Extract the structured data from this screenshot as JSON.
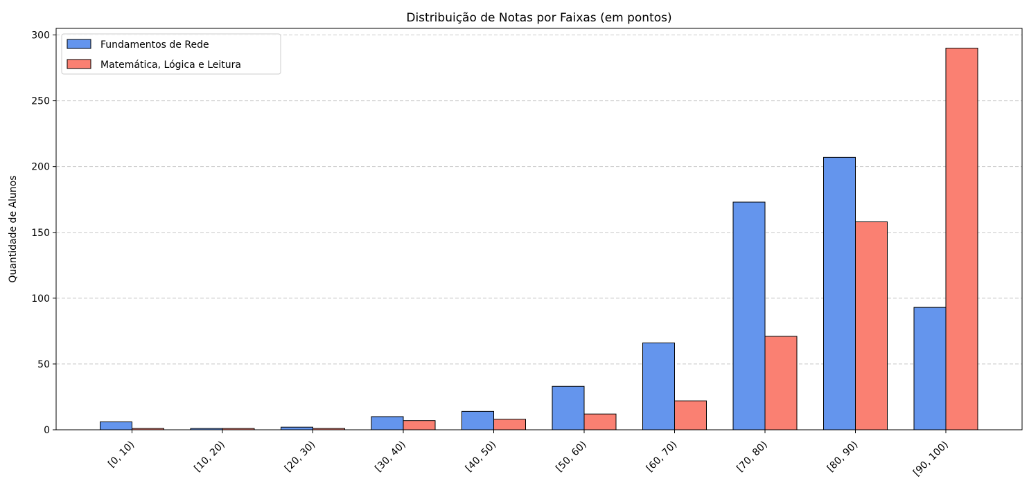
{
  "chart_data": {
    "type": "bar",
    "title": "Distribuição de Notas por Faixas (em pontos)",
    "xlabel": "",
    "ylabel": "Quantidade de Alunos",
    "categories": [
      "[0, 10)",
      "[10, 20)",
      "[20, 30)",
      "[30, 40)",
      "[40, 50)",
      "[50, 60)",
      "[60, 70)",
      "[70, 80)",
      "[80, 90)",
      "[90, 100)"
    ],
    "series": [
      {
        "name": "Fundamentos de Rede",
        "color": "#6495ED",
        "values": [
          6,
          1,
          2,
          10,
          14,
          33,
          66,
          173,
          207,
          93
        ]
      },
      {
        "name": "Matemática, Lógica e Leitura",
        "color": "#FA8072",
        "values": [
          1,
          1,
          1,
          7,
          8,
          12,
          22,
          71,
          158,
          290
        ]
      }
    ],
    "ylim": [
      0,
      305
    ],
    "yticks": [
      0,
      50,
      100,
      150,
      200,
      250,
      300
    ],
    "grid": "y-dashed",
    "legend_position": "top-left"
  }
}
